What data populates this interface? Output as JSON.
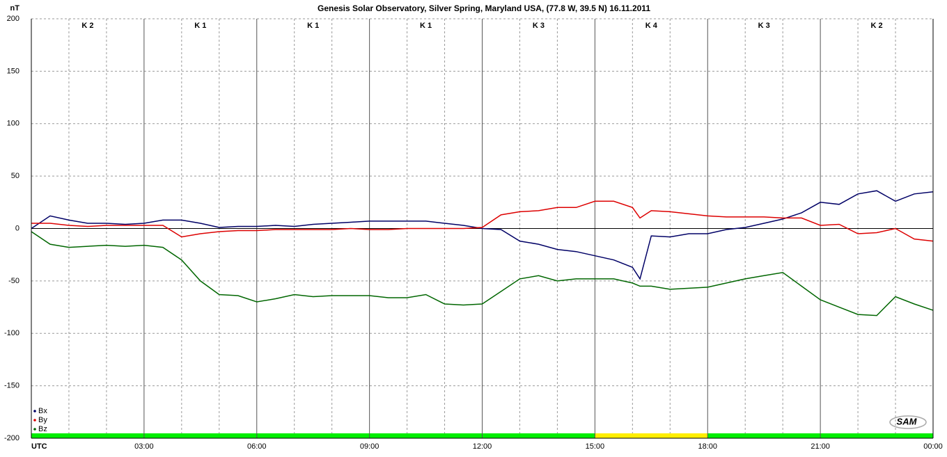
{
  "chart_data": {
    "type": "line",
    "title": "Genesis Solar Observatory, Silver Spring, Maryland USA, (77.8 W, 39.5 N)  16.11.2011",
    "y_label": "nT",
    "x": [
      0,
      0.5,
      1,
      1.5,
      2,
      2.5,
      3,
      3.5,
      4,
      4.5,
      5,
      5.5,
      6,
      6.5,
      7,
      7.5,
      8,
      8.5,
      9,
      9.5,
      10,
      10.5,
      11,
      11.5,
      12,
      12.5,
      13,
      13.5,
      14,
      14.5,
      15,
      15.5,
      16,
      16.2,
      16.5,
      17,
      17.5,
      18,
      18.5,
      19,
      19.5,
      20,
      20.5,
      21,
      21.5,
      22,
      22.5,
      23,
      23.5,
      24
    ],
    "series": [
      {
        "name": "Bx",
        "color": "#000066",
        "values": [
          0,
          12,
          8,
          5,
          5,
          4,
          5,
          8,
          8,
          5,
          1,
          2,
          2,
          3,
          2,
          4,
          5,
          6,
          7,
          7,
          7,
          7,
          5,
          3,
          0,
          -1,
          -12,
          -15,
          -20,
          -22,
          -26,
          -30,
          -37,
          -48,
          -7,
          -8,
          -5,
          -5,
          -1,
          1,
          5,
          9,
          15,
          25,
          23,
          33,
          36,
          26,
          33,
          35
        ]
      },
      {
        "name": "By",
        "color": "#dd0000",
        "values": [
          5,
          5,
          3,
          2,
          3,
          3,
          3,
          3,
          -8,
          -5,
          -3,
          -2,
          -2,
          -1,
          -1,
          -1,
          -1,
          0,
          -1,
          -1,
          0,
          0,
          0,
          0,
          1,
          13,
          16,
          17,
          20,
          20,
          26,
          26,
          20,
          10,
          17,
          16,
          14,
          12,
          11,
          11,
          11,
          10,
          10,
          3,
          4,
          -5,
          -4,
          0,
          -10,
          -12
        ]
      },
      {
        "name": "Bz",
        "color": "#006600",
        "values": [
          -3,
          -15,
          -18,
          -17,
          -16,
          -17,
          -16,
          -18,
          -30,
          -50,
          -63,
          -64,
          -70,
          -67,
          -63,
          -65,
          -64,
          -64,
          -64,
          -66,
          -66,
          -63,
          -72,
          -73,
          -72,
          -60,
          -48,
          -45,
          -50,
          -48,
          -48,
          -48,
          -52,
          -55,
          -55,
          -58,
          -57,
          -56,
          -52,
          -48,
          -45,
          -42,
          -55,
          -68,
          -75,
          -82,
          -83,
          -65,
          -72,
          -78
        ]
      }
    ],
    "xlim": [
      0,
      24
    ],
    "xticks": [
      {
        "value": 0,
        "label": "UTC"
      },
      {
        "value": 3,
        "label": "03:00"
      },
      {
        "value": 6,
        "label": "06:00"
      },
      {
        "value": 9,
        "label": "09:00"
      },
      {
        "value": 12,
        "label": "12:00"
      },
      {
        "value": 15,
        "label": "15:00"
      },
      {
        "value": 18,
        "label": "18:00"
      },
      {
        "value": 21,
        "label": "21:00"
      },
      {
        "value": 24,
        "label": "00:00"
      }
    ],
    "minor_xticks": [
      1,
      2,
      4,
      5,
      7,
      8,
      10,
      11,
      13,
      14,
      16,
      17,
      19,
      20,
      22,
      23
    ],
    "ylim": [
      -200,
      200
    ],
    "yticks": [
      -200,
      -150,
      -100,
      -50,
      0,
      50,
      100,
      150,
      200
    ],
    "grid": true,
    "k_labels": [
      "K 2",
      "K 1",
      "K 1",
      "K 1",
      "K 3",
      "K 4",
      "K 3",
      "K 2"
    ],
    "k_colors": [
      "#00ee00",
      "#00ee00",
      "#00ee00",
      "#00ee00",
      "#00ee00",
      "#ffee00",
      "#00ee00",
      "#00ee00"
    ],
    "legend": "lower left",
    "logo": "SAM"
  }
}
